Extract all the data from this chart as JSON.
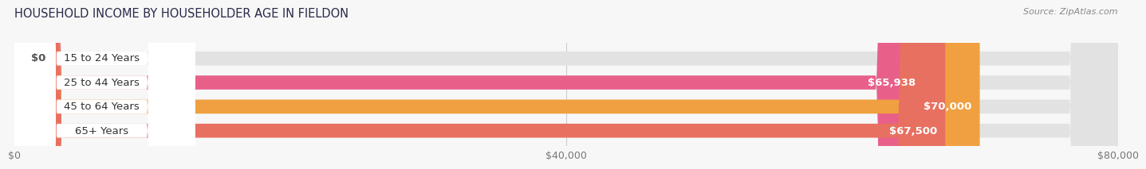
{
  "title": "HOUSEHOLD INCOME BY HOUSEHOLDER AGE IN FIELDON",
  "source": "Source: ZipAtlas.com",
  "categories": [
    "15 to 24 Years",
    "25 to 44 Years",
    "45 to 64 Years",
    "65+ Years"
  ],
  "values": [
    0,
    65938,
    70000,
    67500
  ],
  "bar_colors": [
    "#aab0de",
    "#e8608a",
    "#f0a040",
    "#e87060"
  ],
  "value_labels": [
    "$0",
    "$65,938",
    "$70,000",
    "$67,500"
  ],
  "xlim": [
    0,
    80000
  ],
  "xticks": [
    0,
    40000,
    80000
  ],
  "xticklabels": [
    "$0",
    "$40,000",
    "$80,000"
  ],
  "background_color": "#f7f7f7",
  "bar_bg_color": "#e2e2e2",
  "title_fontsize": 10.5,
  "label_fontsize": 9.5,
  "tick_fontsize": 9,
  "source_fontsize": 8
}
